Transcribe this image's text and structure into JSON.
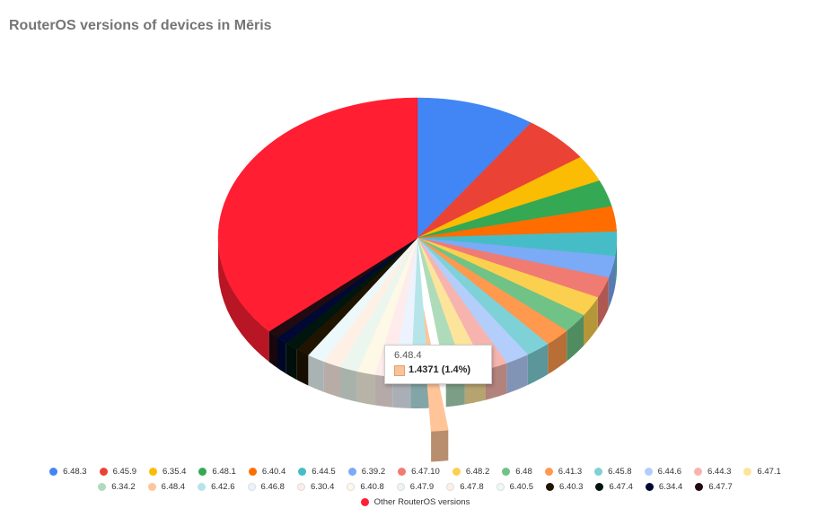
{
  "title": "RouterOS versions of devices in Mēris",
  "tooltip": {
    "label": "6.48.4",
    "value": "1.4371 (1.4%)"
  },
  "chart_data": {
    "type": "pie",
    "title": "RouterOS versions of devices in Mēris",
    "style": "3d",
    "legend_position": "bottom",
    "exploded_slice": "6.48.4",
    "slices": [
      {
        "label": "6.48.3",
        "value": 10.0,
        "color": "#4285f4"
      },
      {
        "label": "6.45.9",
        "value": 5.8,
        "color": "#ea4335"
      },
      {
        "label": "6.35.4",
        "value": 3.2,
        "color": "#fbbc04"
      },
      {
        "label": "6.48.1",
        "value": 3.2,
        "color": "#34a853"
      },
      {
        "label": "6.40.4",
        "value": 3.0,
        "color": "#ff6d01"
      },
      {
        "label": "6.44.5",
        "value": 2.9,
        "color": "#46bdc6"
      },
      {
        "label": "6.39.2",
        "value": 2.6,
        "color": "#7baaf7"
      },
      {
        "label": "6.47.10",
        "value": 2.5,
        "color": "#f07b72"
      },
      {
        "label": "6.48.2",
        "value": 2.4,
        "color": "#fcd04f"
      },
      {
        "label": "6.48",
        "value": 2.3,
        "color": "#71c287"
      },
      {
        "label": "6.41.3",
        "value": 2.2,
        "color": "#ff994d"
      },
      {
        "label": "6.45.8",
        "value": 2.1,
        "color": "#7ed1d7"
      },
      {
        "label": "6.44.6",
        "value": 2.0,
        "color": "#b3cefb"
      },
      {
        "label": "6.44.3",
        "value": 1.9,
        "color": "#f7b4ae"
      },
      {
        "label": "6.47.1",
        "value": 1.8,
        "color": "#fde49b"
      },
      {
        "label": "6.34.2",
        "value": 1.6,
        "color": "#aedcba"
      },
      {
        "label": "6.48.4",
        "value": 1.4371,
        "color": "#ffc599"
      },
      {
        "label": "6.42.6",
        "value": 1.5,
        "color": "#b5e5e8"
      },
      {
        "label": "6.46.8",
        "value": 1.5,
        "color": "#ecf3fe"
      },
      {
        "label": "6.30.4",
        "value": 1.5,
        "color": "#fdeceb"
      },
      {
        "label": "6.40.8",
        "value": 1.5,
        "color": "#fef8e6"
      },
      {
        "label": "6.47.9",
        "value": 1.5,
        "color": "#ebf6ee"
      },
      {
        "label": "6.47.8",
        "value": 1.5,
        "color": "#fff0e6"
      },
      {
        "label": "6.40.5",
        "value": 1.5,
        "color": "#ecf8f9"
      },
      {
        "label": "6.40.3",
        "value": 1.2,
        "color": "#1f1400"
      },
      {
        "label": "6.47.4",
        "value": 1.1,
        "color": "#00150d"
      },
      {
        "label": "6.34.4",
        "value": 1.0,
        "color": "#000833"
      },
      {
        "label": "6.47.7",
        "value": 1.0,
        "color": "#210a10"
      },
      {
        "label": "Other RouterOS versions",
        "value": 38.0,
        "color": "#ff1e32"
      }
    ]
  }
}
